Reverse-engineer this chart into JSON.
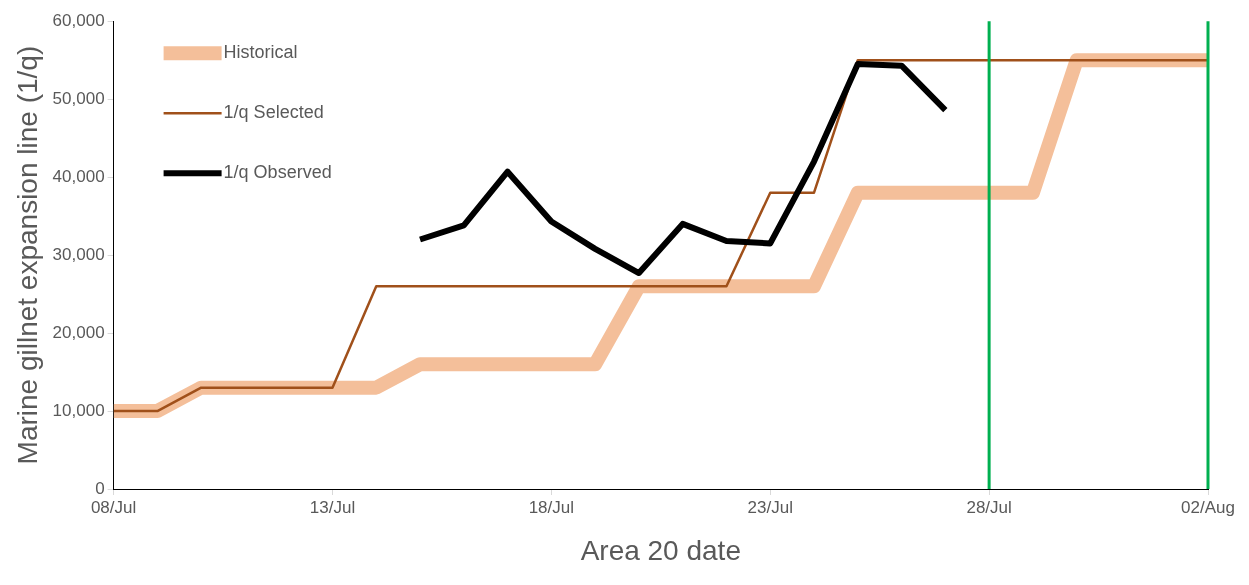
{
  "chart_data": {
    "type": "line",
    "xlabel": "Area 20 date",
    "ylabel": "Marine gillnet expansion line (1/q)",
    "xlim": [
      "--07-08",
      "--08-02"
    ],
    "xticks": [
      {
        "value": "--07-08",
        "label": "08/Jul"
      },
      {
        "value": "--07-13",
        "label": "13/Jul"
      },
      {
        "value": "--07-18",
        "label": "18/Jul"
      },
      {
        "value": "--07-23",
        "label": "23/Jul"
      },
      {
        "value": "--07-28",
        "label": "28/Jul"
      },
      {
        "value": "--08-02",
        "label": "02/Aug"
      }
    ],
    "ylim": [
      0,
      60000
    ],
    "yticks": [
      0,
      {
        "value": 10000,
        "label": "10,000"
      },
      {
        "value": 20000,
        "label": "20,000"
      },
      {
        "value": 30000,
        "label": "30,000"
      },
      {
        "value": 40000,
        "label": "40,000"
      },
      {
        "value": 50000,
        "label": "50,000"
      },
      {
        "value": 60000,
        "label": "60,000"
      }
    ],
    "grid": false,
    "legend": "top left",
    "marker": "none",
    "line_style": "solid",
    "series": [
      {
        "name": "Historical",
        "color": "#f4bf9a",
        "x": [
          "--07-08",
          "--07-09",
          "--07-10",
          "--07-14",
          "--07-15",
          "--07-19",
          "--07-20",
          "--07-24",
          "--07-25",
          "--07-29",
          "--07-30",
          "--08-02"
        ],
        "values": [
          10000,
          10000,
          13000,
          13000,
          16000,
          16000,
          26000,
          26000,
          38000,
          38000,
          55000,
          55000
        ]
      },
      {
        "name": "1/q Selected",
        "color": "#a0501a",
        "x": [
          "--07-08",
          "--07-09",
          "--07-10",
          "--07-13",
          "--07-14",
          "--07-22",
          "--07-23",
          "--07-24",
          "--07-25",
          "--08-02"
        ],
        "values": [
          10000,
          10000,
          13000,
          13000,
          26000,
          26000,
          38000,
          38000,
          55000,
          55000
        ]
      },
      {
        "name": "1/q Observed",
        "color": "#000000",
        "x": [
          "--07-15",
          "--07-16",
          "--07-17",
          "--07-18",
          "--07-19",
          "--07-20",
          "--07-21",
          "--07-22",
          "--07-23",
          "--07-24",
          "--07-25",
          "--07-26",
          "--07-27"
        ],
        "values": [
          32000,
          33800,
          40700,
          34300,
          30800,
          27700,
          34000,
          31800,
          31500,
          42000,
          54500,
          54300,
          48600
        ]
      }
    ],
    "ref_lines": [
      {
        "axis": "x",
        "value": "--07-28",
        "color": "#00b050"
      },
      {
        "axis": "x",
        "value": "--08-02",
        "color": "#00b050"
      }
    ]
  }
}
